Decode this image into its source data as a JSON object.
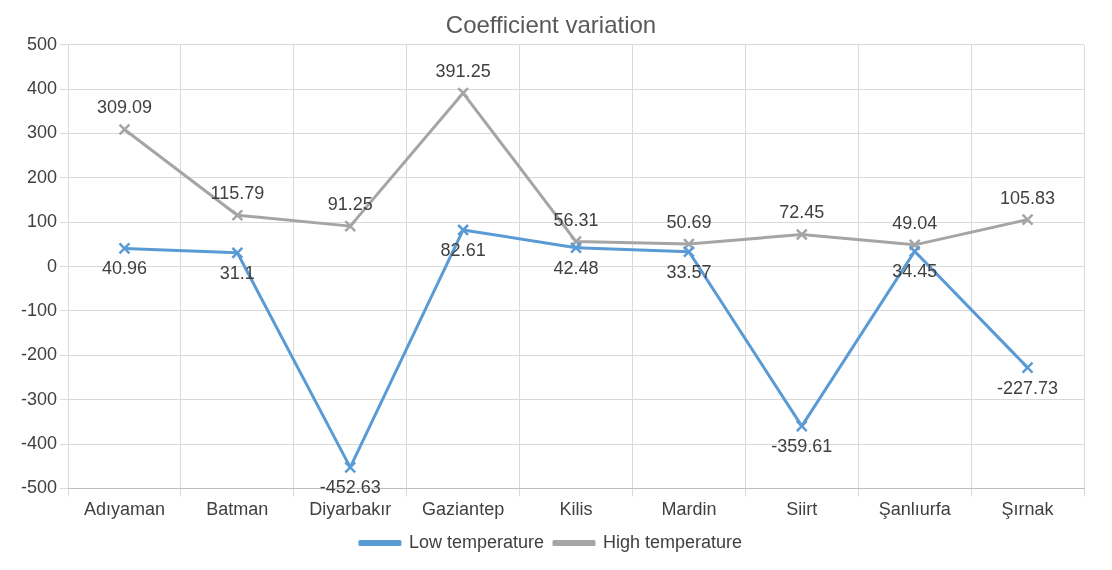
{
  "chart_data": {
    "type": "line",
    "title": "Coefficient variation",
    "categories": [
      "Adıyaman",
      "Batman",
      "Diyarbakır",
      "Gaziantep",
      "Kilis",
      "Mardin",
      "Siirt",
      "Şanlıurfa",
      "Şırnak"
    ],
    "series": [
      {
        "name": "Low temperature",
        "color": "#5b9bd5",
        "values": [
          40.96,
          31.1,
          -452.63,
          82.61,
          42.48,
          33.57,
          -359.61,
          34.45,
          -227.73
        ]
      },
      {
        "name": "High temperature",
        "color": "#a5a5a5",
        "values": [
          309.09,
          115.79,
          91.25,
          391.25,
          56.31,
          50.69,
          72.45,
          49.04,
          105.83
        ]
      }
    ],
    "ylim": [
      -500,
      500
    ],
    "yticks": [
      -500,
      -400,
      -300,
      -200,
      -100,
      0,
      100,
      200,
      300,
      400,
      500
    ],
    "grid": true,
    "legend": "bottom",
    "marker": "cross",
    "line_style": "solid",
    "data_labels": true
  }
}
